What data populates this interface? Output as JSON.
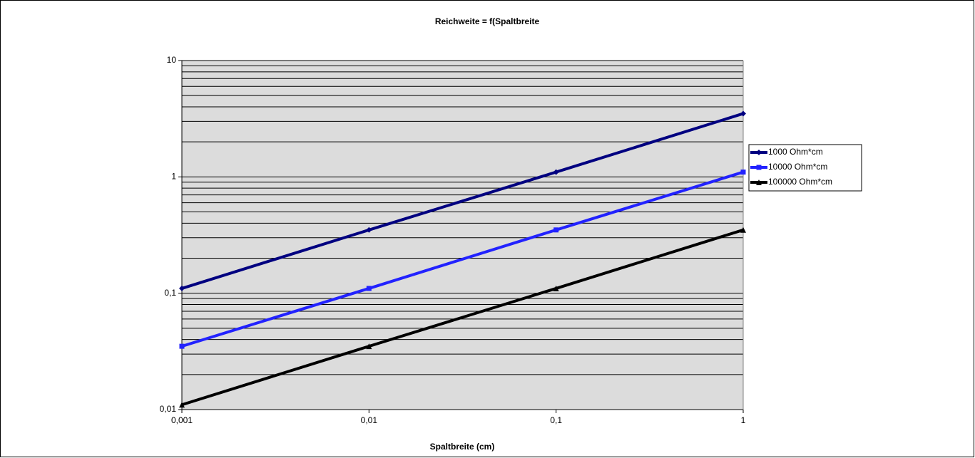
{
  "chart_data": {
    "type": "line",
    "title": "Reichweite = f(Spaltbreite",
    "x_label": "Spaltbreite (cm)",
    "x": [
      0.001,
      0.01,
      0.1,
      1
    ],
    "series": [
      {
        "name": "1000 Ohm*cm",
        "color": "#000080",
        "marker": "diamond",
        "values": [
          0.11,
          0.35,
          1.1,
          3.5
        ]
      },
      {
        "name": "10000 Ohm*cm",
        "color": "#2222ff",
        "marker": "square",
        "values": [
          0.035,
          0.11,
          0.35,
          1.1
        ]
      },
      {
        "name": "100000 Ohm*cm",
        "color": "#000000",
        "marker": "triangle",
        "values": [
          0.011,
          0.035,
          0.11,
          0.35
        ]
      }
    ],
    "xlim": [
      0.001,
      1
    ],
    "ylim": [
      0.01,
      10
    ],
    "xlog": true,
    "ylog": true,
    "xticks": [
      {
        "value": 0.001,
        "label": "0,001"
      },
      {
        "value": 0.01,
        "label": "0,01"
      },
      {
        "value": 0.1,
        "label": "0,1"
      },
      1
    ],
    "yticks": [
      {
        "value": 0.01,
        "label": "0,01"
      },
      {
        "value": 0.1,
        "label": "0,1"
      },
      1,
      10
    ],
    "grid": "minor",
    "legend": "right"
  }
}
